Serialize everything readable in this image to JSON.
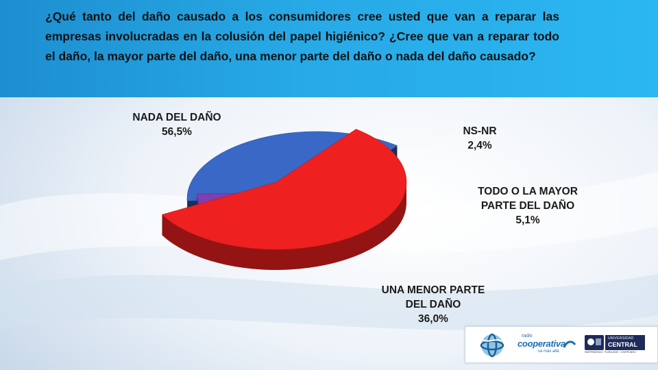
{
  "header": {
    "question": "¿Qué tanto del daño causado a los consumidores cree usted que van a reparar las empresas involucradas en la colusión del papel higiénico? ¿Cree que van a reparar todo el daño, la mayor parte del daño, una menor parte del daño o nada del daño causado?"
  },
  "chart_data": {
    "type": "pie",
    "title": "",
    "slices": [
      {
        "label_lines": [
          "NADA DEL DAÑO"
        ],
        "value": 56.5,
        "value_label": "56,5%",
        "color": "#ef2020"
      },
      {
        "label_lines": [
          "NS-NR"
        ],
        "value": 2.4,
        "value_label": "2,4%",
        "color": "#2fb62a"
      },
      {
        "label_lines": [
          "TODO O LA MAYOR",
          "PARTE DEL DAÑO"
        ],
        "value": 5.1,
        "value_label": "5,1%",
        "color": "#7e3fb0"
      },
      {
        "label_lines": [
          "UNA MENOR PARTE",
          "DEL DAÑO"
        ],
        "value": 36.0,
        "value_label": "36,0%",
        "color": "#3a68c6"
      }
    ],
    "style": "3d-exploded",
    "legend": "none"
  },
  "logos": {
    "radio": {
      "small_text": "radio",
      "brand": "cooperativa",
      "tagline": "va más allá",
      "accent": "#1a6fb3"
    },
    "university": {
      "line1": "UNIVERSIDAD",
      "line2": "CENTRAL",
      "tagline": "INDEPENDENCIA · PLURALISMO · COMPROMISO"
    }
  }
}
